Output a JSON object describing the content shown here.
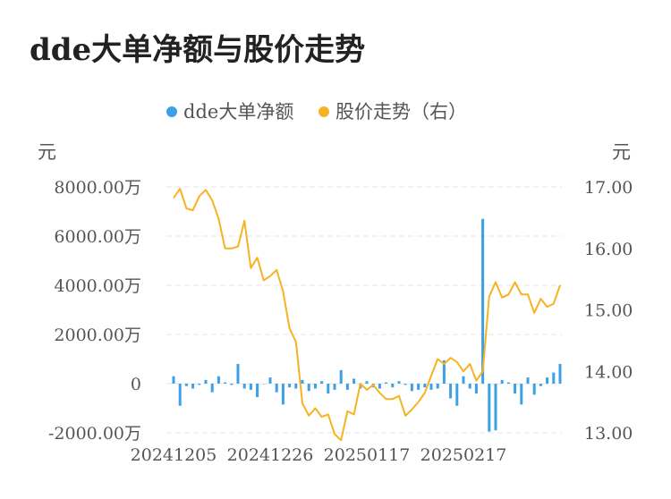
{
  "title": "dde大单净额与股价走势",
  "colors": {
    "bar": "#3ba0e6",
    "line": "#f5b323",
    "grid": "#e6e6e6",
    "axis": "#cccccc"
  },
  "chart_data": {
    "type": "bar+line",
    "title": "dde大单净额与股价走势",
    "legend": [
      "dde大单净额",
      "股价走势（右）"
    ],
    "legend_position": "top-center",
    "left_axis": {
      "unit": "元",
      "ticks": [
        "8000.00万",
        "6000.00万",
        "4000.00万",
        "2000.00万",
        "0",
        "-2000.00万"
      ],
      "range": [
        -2000,
        8000
      ],
      "scale": "万"
    },
    "right_axis": {
      "unit": "元",
      "ticks": [
        "17.00",
        "16.00",
        "15.00",
        "14.00",
        "13.00"
      ],
      "range": [
        13.0,
        17.0
      ]
    },
    "x_tick_labels": [
      "20241205",
      "20241226",
      "20250117",
      "20250217"
    ],
    "x_tick_indices": [
      0,
      15,
      30,
      45
    ],
    "grid": true,
    "series": [
      {
        "name": "dde大单净额",
        "kind": "bar",
        "axis": "left",
        "values": [
          300,
          -900,
          -100,
          -200,
          -50,
          150,
          -350,
          300,
          50,
          -50,
          800,
          -200,
          -250,
          -550,
          0,
          250,
          -350,
          -850,
          -150,
          -200,
          150,
          -300,
          -200,
          100,
          -400,
          -250,
          550,
          -250,
          200,
          -200,
          100,
          -150,
          -200,
          50,
          -150,
          100,
          -50,
          -300,
          -250,
          -150,
          -250,
          -200,
          950,
          -600,
          -900,
          300,
          -200,
          -400,
          6700,
          -1950,
          -1900,
          150,
          50,
          -400,
          -850,
          250,
          -450,
          -100,
          250,
          450,
          800
        ]
      },
      {
        "name": "股价走势（右）",
        "kind": "line",
        "axis": "right",
        "values": [
          16.82,
          16.97,
          16.65,
          16.62,
          16.85,
          16.95,
          16.78,
          16.48,
          16.0,
          16.0,
          16.03,
          16.45,
          15.68,
          15.85,
          15.48,
          15.55,
          15.65,
          15.3,
          14.7,
          14.48,
          13.48,
          13.28,
          13.4,
          13.26,
          13.3,
          12.98,
          12.88,
          13.35,
          13.3,
          13.8,
          13.7,
          13.78,
          13.65,
          13.55,
          13.55,
          13.6,
          13.28,
          13.38,
          13.5,
          13.65,
          13.93,
          14.2,
          14.12,
          14.22,
          14.15,
          14.0,
          14.12,
          13.85,
          14.0,
          15.22,
          15.45,
          15.2,
          15.25,
          15.45,
          15.25,
          15.25,
          14.95,
          15.18,
          15.05,
          15.1,
          15.4
        ]
      }
    ]
  }
}
